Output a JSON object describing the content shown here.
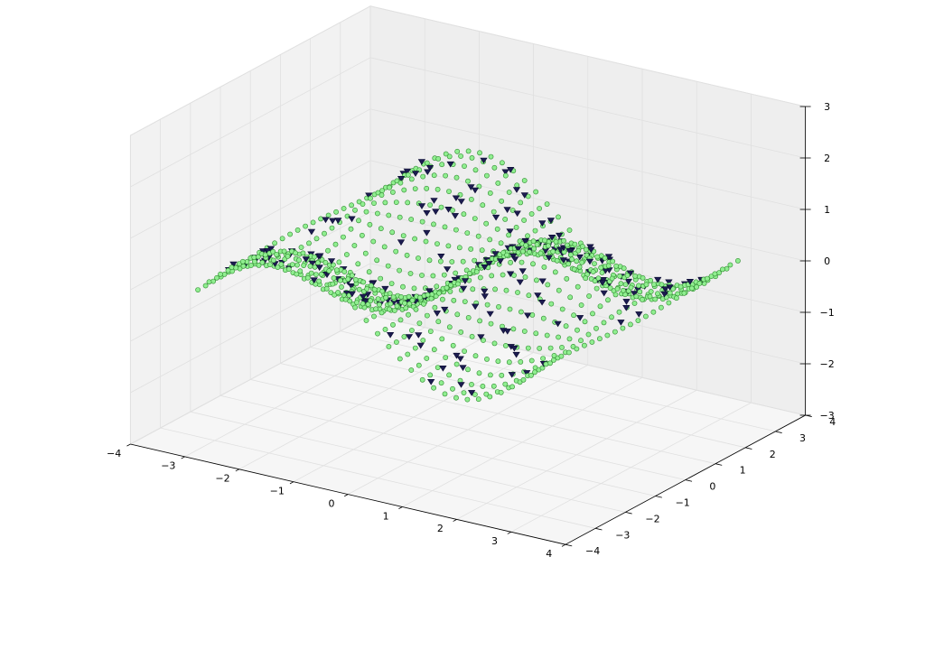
{
  "chart_data": {
    "type": "scatter",
    "projection": "3d",
    "title": "",
    "xlabel": "",
    "ylabel": "",
    "zlabel": "",
    "xlim": [
      -4,
      4
    ],
    "ylim": [
      -4,
      4
    ],
    "zlim": [
      -3,
      3
    ],
    "x_ticks": [
      -4,
      -3,
      -2,
      -1,
      0,
      1,
      2,
      3,
      4
    ],
    "y_ticks": [
      -4,
      -3,
      -2,
      -1,
      0,
      1,
      2,
      3,
      4
    ],
    "z_ticks": [
      -3,
      -2,
      -1,
      0,
      1,
      2,
      3
    ],
    "x_tick_labels": [
      "−4",
      "−3",
      "−2",
      "−1",
      "0",
      "1",
      "2",
      "3",
      "4"
    ],
    "y_tick_labels": [
      "−4",
      "−3",
      "−2",
      "−1",
      "0",
      "1",
      "2",
      "3",
      "4"
    ],
    "z_tick_labels": [
      "−3",
      "−2",
      "−1",
      "0",
      "1",
      "2",
      "3"
    ],
    "grid": true,
    "series": [
      {
        "marker": "circle",
        "face_color": "#90ee90",
        "edge_color": "#2e8b2e",
        "surface": "z = sin(x) * cos(y)",
        "x_range": [
          -3.2,
          3.2
        ],
        "y_range": [
          -3.2,
          3.2
        ],
        "samples_x": 32,
        "samples_y": 26
      },
      {
        "marker": "triangle-down",
        "face_color": "#1c1c50",
        "edge_color": "#0a0a30",
        "surface": "z = sin(x) * cos(y)",
        "x_range": [
          -3.2,
          3.2
        ],
        "y_range": [
          -3.2,
          3.2
        ],
        "count": 220,
        "z_offset": 0.06
      }
    ]
  }
}
